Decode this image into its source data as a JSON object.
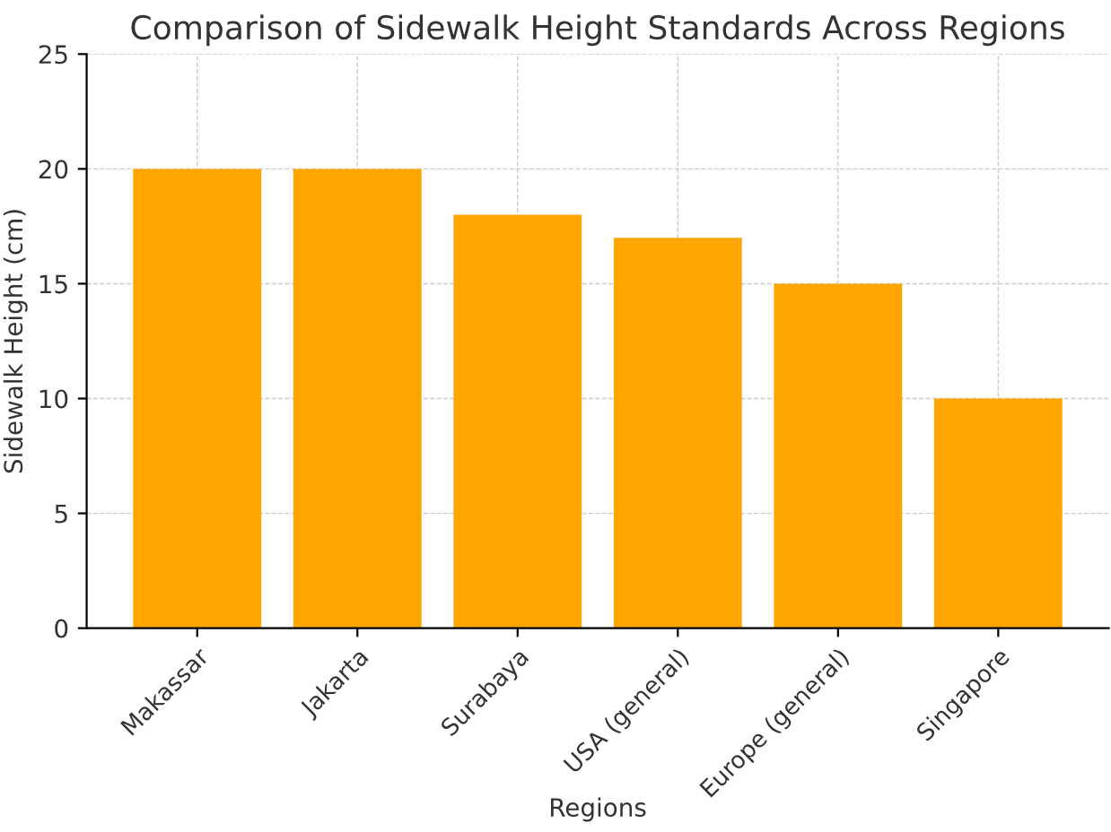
{
  "chart_data": {
    "type": "bar",
    "title": "Comparison of Sidewalk Height Standards Across Regions",
    "xlabel": "Regions",
    "ylabel": "Sidewalk Height (cm)",
    "categories": [
      "Makassar",
      "Jakarta",
      "Surabaya",
      "USA (general)",
      "Europe (general)",
      "Singapore"
    ],
    "values": [
      20,
      20,
      18,
      17,
      15,
      10
    ],
    "color": "#ffa500",
    "ylim": [
      0,
      25
    ],
    "yticks": [
      0,
      5,
      10,
      15,
      20,
      25
    ],
    "grid": true
  }
}
